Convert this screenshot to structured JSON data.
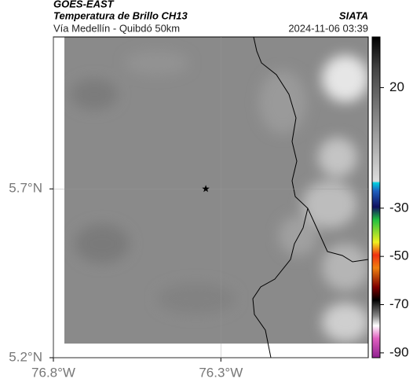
{
  "header": {
    "title": "GOES-EAST",
    "subtitle": "Temperatura de Brillo CH13",
    "source": "SIATA",
    "route": "Vía Medellín - Quibdó 50km",
    "timestamp": "2024-11-06 03:39"
  },
  "map": {
    "lonlim": [
      -76.8,
      -75.86
    ],
    "latlim": [
      5.2,
      6.15
    ],
    "lonticks": [
      {
        "value": -76.8,
        "label": "76.8°W"
      },
      {
        "value": -76.3,
        "label": "76.3°W"
      }
    ],
    "latticks": [
      {
        "value": 5.7,
        "label": "5.7°N"
      },
      {
        "value": 5.2,
        "label": "5.2°N"
      }
    ],
    "marker": {
      "lon": -76.345,
      "lat": 5.7
    }
  },
  "colorbar": {
    "lim": [
      -92,
      41
    ],
    "ticks": [
      20,
      -30,
      -50,
      -70,
      -90
    ]
  }
}
